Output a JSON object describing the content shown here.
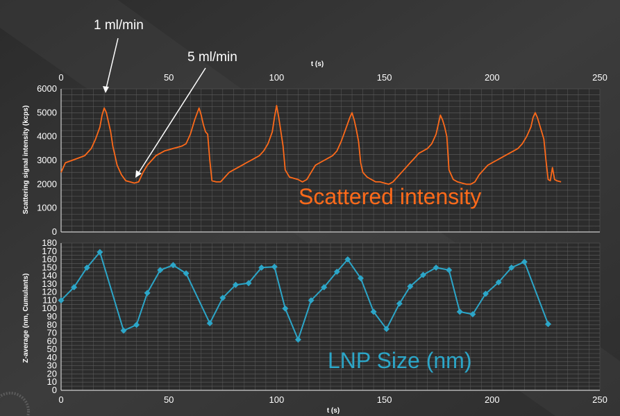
{
  "chart_data": [
    {
      "type": "line",
      "title": "",
      "xlabel": "t (s)",
      "ylabel": "Scattering signal intensity (kcps)",
      "xlim": [
        0,
        250
      ],
      "ylim": [
        0,
        6000
      ],
      "x_ticks": [
        0,
        50,
        100,
        150,
        200,
        250
      ],
      "y_ticks": [
        0,
        1000,
        2000,
        3000,
        4000,
        5000,
        6000
      ],
      "x_axis_position": "top",
      "grid": true,
      "series": [
        {
          "name": "Scattered intensity",
          "color": "#ff6a1a",
          "x": [
            0,
            2,
            5,
            8,
            11,
            14,
            16,
            18,
            19,
            20,
            21,
            22,
            23,
            24,
            25,
            26,
            28,
            30,
            32,
            34,
            36,
            38,
            40,
            42,
            44,
            46,
            48,
            50,
            52,
            54,
            56,
            58,
            60,
            62,
            64,
            65,
            66,
            67,
            68,
            69,
            70,
            72,
            74,
            76,
            78,
            80,
            82,
            84,
            86,
            88,
            90,
            92,
            94,
            96,
            98,
            99,
            100,
            101,
            102,
            103,
            104,
            106,
            108,
            110,
            112,
            114,
            116,
            118,
            120,
            122,
            124,
            126,
            128,
            130,
            132,
            134,
            135,
            136,
            137,
            138,
            139,
            140,
            142,
            144,
            146,
            148,
            150,
            152,
            154,
            156,
            158,
            160,
            162,
            164,
            166,
            168,
            170,
            172,
            174,
            175,
            176,
            177,
            178,
            179,
            180,
            182,
            184,
            186,
            188,
            190,
            192,
            194,
            196,
            198,
            200,
            202,
            204,
            206,
            208,
            210,
            212,
            214,
            216,
            218,
            219,
            220,
            221,
            222,
            223,
            224,
            225,
            226,
            227,
            228,
            229,
            230,
            232
          ],
          "y": [
            2500,
            2900,
            3000,
            3100,
            3200,
            3500,
            3900,
            4400,
            4900,
            5200,
            5000,
            4600,
            4200,
            3600,
            3200,
            2800,
            2400,
            2150,
            2100,
            2050,
            2100,
            2500,
            2800,
            3000,
            3200,
            3300,
            3400,
            3450,
            3500,
            3550,
            3600,
            3700,
            4100,
            4700,
            5200,
            4900,
            4500,
            4200,
            4100,
            3000,
            2150,
            2100,
            2100,
            2300,
            2500,
            2600,
            2700,
            2800,
            2900,
            3000,
            3100,
            3200,
            3400,
            3700,
            4200,
            4800,
            5300,
            4800,
            4200,
            3600,
            2600,
            2300,
            2250,
            2200,
            2100,
            2200,
            2500,
            2800,
            2900,
            3000,
            3100,
            3200,
            3400,
            3800,
            4300,
            4800,
            5000,
            4700,
            4300,
            3800,
            2900,
            2500,
            2300,
            2200,
            2100,
            2100,
            2050,
            2000,
            2100,
            2300,
            2500,
            2700,
            2900,
            3100,
            3300,
            3400,
            3500,
            3700,
            4100,
            4500,
            4900,
            4700,
            4400,
            4000,
            2600,
            2200,
            2100,
            2050,
            2000,
            2000,
            2100,
            2400,
            2600,
            2800,
            2900,
            3000,
            3100,
            3200,
            3300,
            3400,
            3500,
            3700,
            4000,
            4400,
            4800,
            5000,
            4800,
            4500,
            4200,
            3900,
            3000,
            2200,
            2150,
            2700,
            2200,
            2150,
            2100
          ]
        }
      ]
    },
    {
      "type": "line",
      "title": "",
      "xlabel": "t (s)",
      "ylabel": "Z-average (nm, Cumulants)",
      "xlim": [
        0,
        250
      ],
      "ylim": [
        0,
        180
      ],
      "x_ticks": [
        0,
        50,
        100,
        150,
        200,
        250
      ],
      "y_ticks": [
        0,
        10,
        20,
        30,
        40,
        50,
        60,
        70,
        80,
        90,
        100,
        110,
        120,
        130,
        140,
        150,
        160,
        170,
        180
      ],
      "x_axis_position": "bottom",
      "grid": true,
      "markers": "diamond",
      "series": [
        {
          "name": "LNP Size (nm)",
          "color": "#2ca6c8",
          "x": [
            0,
            6,
            12,
            18,
            29,
            35,
            40,
            46,
            52,
            58,
            69,
            75,
            81,
            87,
            93,
            99,
            104,
            110,
            116,
            122,
            128,
            133,
            139,
            145,
            151,
            157,
            162,
            168,
            174,
            180,
            185,
            191,
            197,
            203,
            209,
            215,
            226
          ],
          "y": [
            110,
            126,
            150,
            169,
            73,
            80,
            119,
            147,
            153,
            143,
            82,
            113,
            129,
            131,
            150,
            151,
            100,
            62,
            110,
            126,
            145,
            160,
            137,
            96,
            75,
            106,
            127,
            141,
            150,
            147,
            96,
            93,
            118,
            132,
            150,
            157,
            81
          ]
        }
      ]
    }
  ],
  "annotations": {
    "label_1": "1 ml/min",
    "label_5": "5 ml/min"
  },
  "colors": {
    "background": "#1c1c1c",
    "plot_area": "#2a2a2a",
    "grid": "#5a5a5a",
    "text": "#ffffff"
  }
}
